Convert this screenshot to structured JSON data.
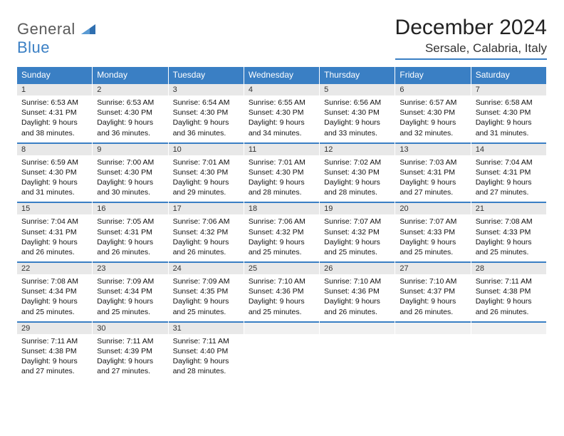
{
  "logo": {
    "general": "General",
    "blue": "Blue"
  },
  "title": "December 2024",
  "location": "Sersale, Calabria, Italy",
  "colors": {
    "accent": "#3a7fc4",
    "dayhead_bg": "#3a7fc4",
    "daynum_bg": "#e8e8e8",
    "blank_bg": "#f1f1f1"
  },
  "dayheads": [
    "Sunday",
    "Monday",
    "Tuesday",
    "Wednesday",
    "Thursday",
    "Friday",
    "Saturday"
  ],
  "weeks": [
    [
      {
        "n": "1",
        "sr": "Sunrise: 6:53 AM",
        "ss": "Sunset: 4:31 PM",
        "dl": "Daylight: 9 hours and 38 minutes."
      },
      {
        "n": "2",
        "sr": "Sunrise: 6:53 AM",
        "ss": "Sunset: 4:30 PM",
        "dl": "Daylight: 9 hours and 36 minutes."
      },
      {
        "n": "3",
        "sr": "Sunrise: 6:54 AM",
        "ss": "Sunset: 4:30 PM",
        "dl": "Daylight: 9 hours and 36 minutes."
      },
      {
        "n": "4",
        "sr": "Sunrise: 6:55 AM",
        "ss": "Sunset: 4:30 PM",
        "dl": "Daylight: 9 hours and 34 minutes."
      },
      {
        "n": "5",
        "sr": "Sunrise: 6:56 AM",
        "ss": "Sunset: 4:30 PM",
        "dl": "Daylight: 9 hours and 33 minutes."
      },
      {
        "n": "6",
        "sr": "Sunrise: 6:57 AM",
        "ss": "Sunset: 4:30 PM",
        "dl": "Daylight: 9 hours and 32 minutes."
      },
      {
        "n": "7",
        "sr": "Sunrise: 6:58 AM",
        "ss": "Sunset: 4:30 PM",
        "dl": "Daylight: 9 hours and 31 minutes."
      }
    ],
    [
      {
        "n": "8",
        "sr": "Sunrise: 6:59 AM",
        "ss": "Sunset: 4:30 PM",
        "dl": "Daylight: 9 hours and 31 minutes."
      },
      {
        "n": "9",
        "sr": "Sunrise: 7:00 AM",
        "ss": "Sunset: 4:30 PM",
        "dl": "Daylight: 9 hours and 30 minutes."
      },
      {
        "n": "10",
        "sr": "Sunrise: 7:01 AM",
        "ss": "Sunset: 4:30 PM",
        "dl": "Daylight: 9 hours and 29 minutes."
      },
      {
        "n": "11",
        "sr": "Sunrise: 7:01 AM",
        "ss": "Sunset: 4:30 PM",
        "dl": "Daylight: 9 hours and 28 minutes."
      },
      {
        "n": "12",
        "sr": "Sunrise: 7:02 AM",
        "ss": "Sunset: 4:30 PM",
        "dl": "Daylight: 9 hours and 28 minutes."
      },
      {
        "n": "13",
        "sr": "Sunrise: 7:03 AM",
        "ss": "Sunset: 4:31 PM",
        "dl": "Daylight: 9 hours and 27 minutes."
      },
      {
        "n": "14",
        "sr": "Sunrise: 7:04 AM",
        "ss": "Sunset: 4:31 PM",
        "dl": "Daylight: 9 hours and 27 minutes."
      }
    ],
    [
      {
        "n": "15",
        "sr": "Sunrise: 7:04 AM",
        "ss": "Sunset: 4:31 PM",
        "dl": "Daylight: 9 hours and 26 minutes."
      },
      {
        "n": "16",
        "sr": "Sunrise: 7:05 AM",
        "ss": "Sunset: 4:31 PM",
        "dl": "Daylight: 9 hours and 26 minutes."
      },
      {
        "n": "17",
        "sr": "Sunrise: 7:06 AM",
        "ss": "Sunset: 4:32 PM",
        "dl": "Daylight: 9 hours and 26 minutes."
      },
      {
        "n": "18",
        "sr": "Sunrise: 7:06 AM",
        "ss": "Sunset: 4:32 PM",
        "dl": "Daylight: 9 hours and 25 minutes."
      },
      {
        "n": "19",
        "sr": "Sunrise: 7:07 AM",
        "ss": "Sunset: 4:32 PM",
        "dl": "Daylight: 9 hours and 25 minutes."
      },
      {
        "n": "20",
        "sr": "Sunrise: 7:07 AM",
        "ss": "Sunset: 4:33 PM",
        "dl": "Daylight: 9 hours and 25 minutes."
      },
      {
        "n": "21",
        "sr": "Sunrise: 7:08 AM",
        "ss": "Sunset: 4:33 PM",
        "dl": "Daylight: 9 hours and 25 minutes."
      }
    ],
    [
      {
        "n": "22",
        "sr": "Sunrise: 7:08 AM",
        "ss": "Sunset: 4:34 PM",
        "dl": "Daylight: 9 hours and 25 minutes."
      },
      {
        "n": "23",
        "sr": "Sunrise: 7:09 AM",
        "ss": "Sunset: 4:34 PM",
        "dl": "Daylight: 9 hours and 25 minutes."
      },
      {
        "n": "24",
        "sr": "Sunrise: 7:09 AM",
        "ss": "Sunset: 4:35 PM",
        "dl": "Daylight: 9 hours and 25 minutes."
      },
      {
        "n": "25",
        "sr": "Sunrise: 7:10 AM",
        "ss": "Sunset: 4:36 PM",
        "dl": "Daylight: 9 hours and 25 minutes."
      },
      {
        "n": "26",
        "sr": "Sunrise: 7:10 AM",
        "ss": "Sunset: 4:36 PM",
        "dl": "Daylight: 9 hours and 26 minutes."
      },
      {
        "n": "27",
        "sr": "Sunrise: 7:10 AM",
        "ss": "Sunset: 4:37 PM",
        "dl": "Daylight: 9 hours and 26 minutes."
      },
      {
        "n": "28",
        "sr": "Sunrise: 7:11 AM",
        "ss": "Sunset: 4:38 PM",
        "dl": "Daylight: 9 hours and 26 minutes."
      }
    ],
    [
      {
        "n": "29",
        "sr": "Sunrise: 7:11 AM",
        "ss": "Sunset: 4:38 PM",
        "dl": "Daylight: 9 hours and 27 minutes."
      },
      {
        "n": "30",
        "sr": "Sunrise: 7:11 AM",
        "ss": "Sunset: 4:39 PM",
        "dl": "Daylight: 9 hours and 27 minutes."
      },
      {
        "n": "31",
        "sr": "Sunrise: 7:11 AM",
        "ss": "Sunset: 4:40 PM",
        "dl": "Daylight: 9 hours and 28 minutes."
      },
      {
        "blank": true
      },
      {
        "blank": true
      },
      {
        "blank": true
      },
      {
        "blank": true
      }
    ]
  ]
}
